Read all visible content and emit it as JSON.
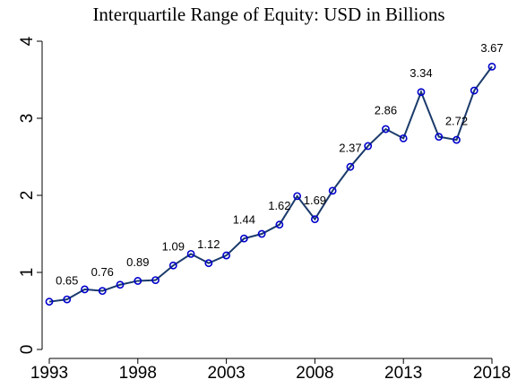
{
  "chart_data": {
    "type": "line",
    "title": "Interquartile Range of Equity: USD in Billions",
    "x": [
      1993,
      1994,
      1995,
      1996,
      1997,
      1998,
      1999,
      2000,
      2001,
      2002,
      2003,
      2004,
      2005,
      2006,
      2007,
      2008,
      2009,
      2010,
      2011,
      2012,
      2013,
      2014,
      2015,
      2016,
      2017,
      2018
    ],
    "values": [
      0.62,
      0.65,
      0.78,
      0.76,
      0.84,
      0.89,
      0.9,
      1.09,
      1.24,
      1.12,
      1.22,
      1.44,
      1.5,
      1.62,
      1.99,
      1.69,
      2.06,
      2.37,
      2.64,
      2.86,
      2.74,
      3.34,
      2.76,
      2.72,
      3.36,
      3.67
    ],
    "value_labels": [
      null,
      "0.65",
      null,
      "0.76",
      null,
      "0.89",
      null,
      "1.09",
      null,
      "1.12",
      null,
      "1.44",
      null,
      "1.62",
      null,
      "1.69",
      null,
      "2.37",
      null,
      "2.86",
      null,
      "3.34",
      null,
      "2.72",
      null,
      "3.67"
    ],
    "line_color": "#1a3a6b",
    "marker_color": "#0000cc",
    "xlim": [
      1993,
      2018
    ],
    "xticks": [
      1993,
      1998,
      2003,
      2008,
      2013,
      2018
    ],
    "ylim": [
      0,
      4
    ],
    "yticks": [
      0,
      1,
      2,
      3,
      4
    ],
    "grid": false
  }
}
